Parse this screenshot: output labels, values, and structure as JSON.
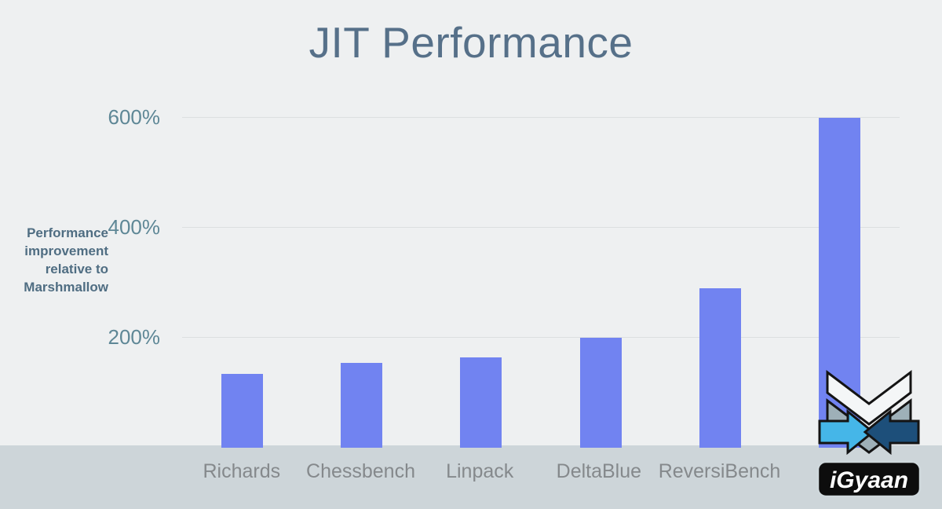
{
  "slide": {
    "title": "JIT Performance",
    "y_axis_label_lines": [
      "Performance",
      "improvement",
      "relative to",
      "Marshmallow"
    ]
  },
  "watermark": {
    "text": "iGyaan"
  },
  "chart_data": {
    "type": "bar",
    "title": "JIT Performance",
    "ylabel": "Performance improvement relative to Marshmallow",
    "categories": [
      "Richards",
      "Chessbench",
      "Linpack",
      "DeltaBlue",
      "ReversiBench",
      ""
    ],
    "values": [
      135,
      155,
      165,
      200,
      290,
      600
    ],
    "unit": "%",
    "yticks": [
      200,
      400,
      600
    ],
    "ylim": [
      0,
      650
    ],
    "grid": true,
    "legend": "none",
    "bar_color": "#7183f1",
    "background_color": "#eef0f1",
    "footer_strip_color": "#cdd5d9",
    "title_color": "#567089",
    "tick_label_color": "#5e8796",
    "category_label_color": "#85898c",
    "axis_label_color": "#4f6d82"
  }
}
